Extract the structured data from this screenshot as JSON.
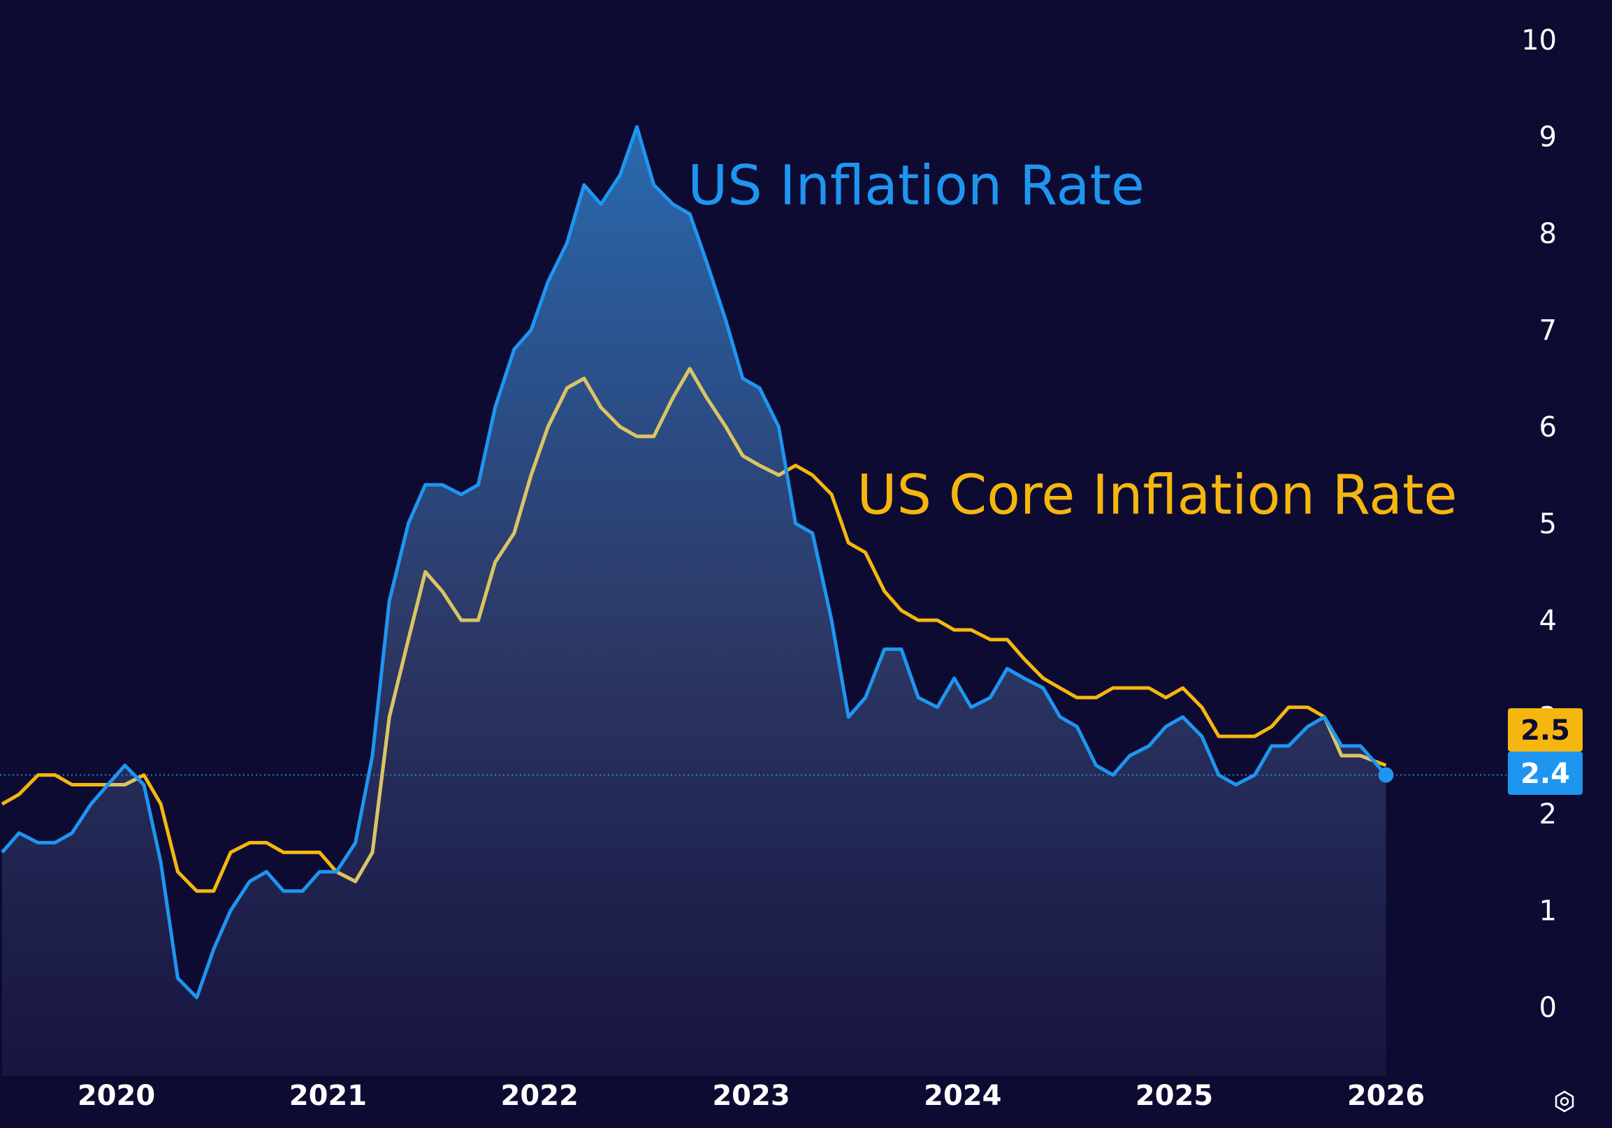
{
  "chart_data": {
    "type": "line",
    "title": "",
    "xlabel": "",
    "ylabel": "",
    "ylim": [
      -0.5,
      10
    ],
    "yticks": [
      0,
      1,
      2,
      3,
      4,
      5,
      6,
      7,
      8,
      9,
      10
    ],
    "xticks": [
      2020,
      2021,
      2022,
      2023,
      2024,
      2025,
      2026
    ],
    "xlim": [
      2019.45,
      2026.55
    ],
    "grid": false,
    "reference_line": 2.4,
    "series": [
      {
        "name": "US Inflation Rate",
        "color": "#1e96f0",
        "filled": true,
        "x": [
          2019.46,
          2019.54,
          2019.63,
          2019.71,
          2019.79,
          2019.88,
          2019.96,
          2020.04,
          2020.13,
          2020.21,
          2020.29,
          2020.38,
          2020.46,
          2020.54,
          2020.63,
          2020.71,
          2020.79,
          2020.88,
          2020.96,
          2021.04,
          2021.13,
          2021.21,
          2021.29,
          2021.38,
          2021.46,
          2021.54,
          2021.63,
          2021.71,
          2021.79,
          2021.88,
          2021.96,
          2022.04,
          2022.13,
          2022.21,
          2022.29,
          2022.38,
          2022.46,
          2022.54,
          2022.63,
          2022.71,
          2022.79,
          2022.88,
          2022.96,
          2023.04,
          2023.13,
          2023.21,
          2023.29,
          2023.38,
          2023.46,
          2023.54,
          2023.63,
          2023.71,
          2023.79,
          2023.88,
          2023.96,
          2024.04,
          2024.13,
          2024.21,
          2024.29,
          2024.38,
          2024.46,
          2024.54,
          2024.63,
          2024.71,
          2024.79,
          2024.88,
          2024.96,
          2025.04,
          2025.13,
          2025.21,
          2025.29,
          2025.38,
          2025.46,
          2025.54,
          2025.63,
          2025.71,
          2025.79,
          2025.88
        ],
        "values": [
          1.6,
          1.8,
          1.7,
          1.7,
          1.8,
          2.1,
          2.3,
          2.5,
          2.3,
          1.5,
          0.3,
          0.1,
          0.6,
          1.0,
          1.3,
          1.4,
          1.2,
          1.2,
          1.4,
          1.4,
          1.7,
          2.6,
          4.2,
          5.0,
          5.4,
          5.4,
          5.3,
          5.4,
          6.2,
          6.8,
          7.0,
          7.5,
          7.9,
          8.5,
          8.3,
          8.6,
          9.1,
          8.5,
          8.3,
          8.2,
          7.7,
          7.1,
          6.5,
          6.4,
          6.0,
          5.0,
          4.9,
          4.0,
          3.0,
          3.2,
          3.7,
          3.7,
          3.2,
          3.1,
          3.4,
          3.1,
          3.2,
          3.5,
          3.4,
          3.3,
          3.0,
          2.9,
          2.5,
          2.4,
          2.6,
          2.7,
          2.9,
          3.0,
          2.8,
          2.4,
          2.3,
          2.4,
          2.7,
          2.7,
          2.9,
          3.0,
          2.7,
          2.7
        ]
      },
      {
        "name": "US Core Inflation Rate",
        "color": "#f5b70f",
        "filled": false,
        "x": [
          2019.46,
          2019.54,
          2019.63,
          2019.71,
          2019.79,
          2019.88,
          2019.96,
          2020.04,
          2020.13,
          2020.21,
          2020.29,
          2020.38,
          2020.46,
          2020.54,
          2020.63,
          2020.71,
          2020.79,
          2020.88,
          2020.96,
          2021.04,
          2021.13,
          2021.21,
          2021.29,
          2021.38,
          2021.46,
          2021.54,
          2021.63,
          2021.71,
          2021.79,
          2021.88,
          2021.96,
          2022.04,
          2022.13,
          2022.21,
          2022.29,
          2022.38,
          2022.46,
          2022.54,
          2022.63,
          2022.71,
          2022.79,
          2022.88,
          2022.96,
          2023.04,
          2023.13,
          2023.21,
          2023.29,
          2023.38,
          2023.46,
          2023.54,
          2023.63,
          2023.71,
          2023.79,
          2023.88,
          2023.96,
          2024.04,
          2024.13,
          2024.21,
          2024.29,
          2024.38,
          2024.46,
          2024.54,
          2024.63,
          2024.71,
          2024.79,
          2024.88,
          2024.96,
          2025.04,
          2025.13,
          2025.21,
          2025.29,
          2025.38,
          2025.46,
          2025.54,
          2025.63,
          2025.71,
          2025.79,
          2025.88
        ],
        "values": [
          2.1,
          2.2,
          2.4,
          2.4,
          2.3,
          2.3,
          2.3,
          2.3,
          2.4,
          2.1,
          1.4,
          1.2,
          1.2,
          1.6,
          1.7,
          1.7,
          1.6,
          1.6,
          1.6,
          1.4,
          1.3,
          1.6,
          3.0,
          3.8,
          4.5,
          4.3,
          4.0,
          4.0,
          4.6,
          4.9,
          5.5,
          6.0,
          6.4,
          6.5,
          6.2,
          6.0,
          5.9,
          5.9,
          6.3,
          6.6,
          6.3,
          6.0,
          5.7,
          5.6,
          5.5,
          5.6,
          5.5,
          5.3,
          4.8,
          4.7,
          4.3,
          4.1,
          4.0,
          4.0,
          3.9,
          3.9,
          3.8,
          3.8,
          3.6,
          3.4,
          3.3,
          3.2,
          3.2,
          3.3,
          3.3,
          3.3,
          3.2,
          3.3,
          3.1,
          2.8,
          2.8,
          2.8,
          2.9,
          3.1,
          3.1,
          3.0,
          2.6,
          2.6
        ]
      }
    ],
    "end_points": [
      {
        "x": 2026.0,
        "inflation": 2.4,
        "core": 2.5
      }
    ],
    "annotations": [
      {
        "text": "US Inflation Rate",
        "series": 0,
        "x": 2022.7,
        "y": 8.3
      },
      {
        "text": "US Core Inflation Rate",
        "series": 1,
        "x": 2023.5,
        "y": 5.1
      }
    ],
    "badges": [
      {
        "label": "2.5",
        "series": 1,
        "y": 2.5,
        "bg": "#f5b70f",
        "fg": "#0e0b33"
      },
      {
        "label": "2.4",
        "series": 0,
        "y": 2.4,
        "bg": "#1e96f0",
        "fg": "#ffffff"
      }
    ]
  },
  "colors": {
    "background": "#0e0b33",
    "inflation": "#1e96f0",
    "core": "#f5b70f",
    "overlap": "#d9c466",
    "tick_text": "#ffffff"
  },
  "icons": {
    "settings": "settings-icon"
  }
}
